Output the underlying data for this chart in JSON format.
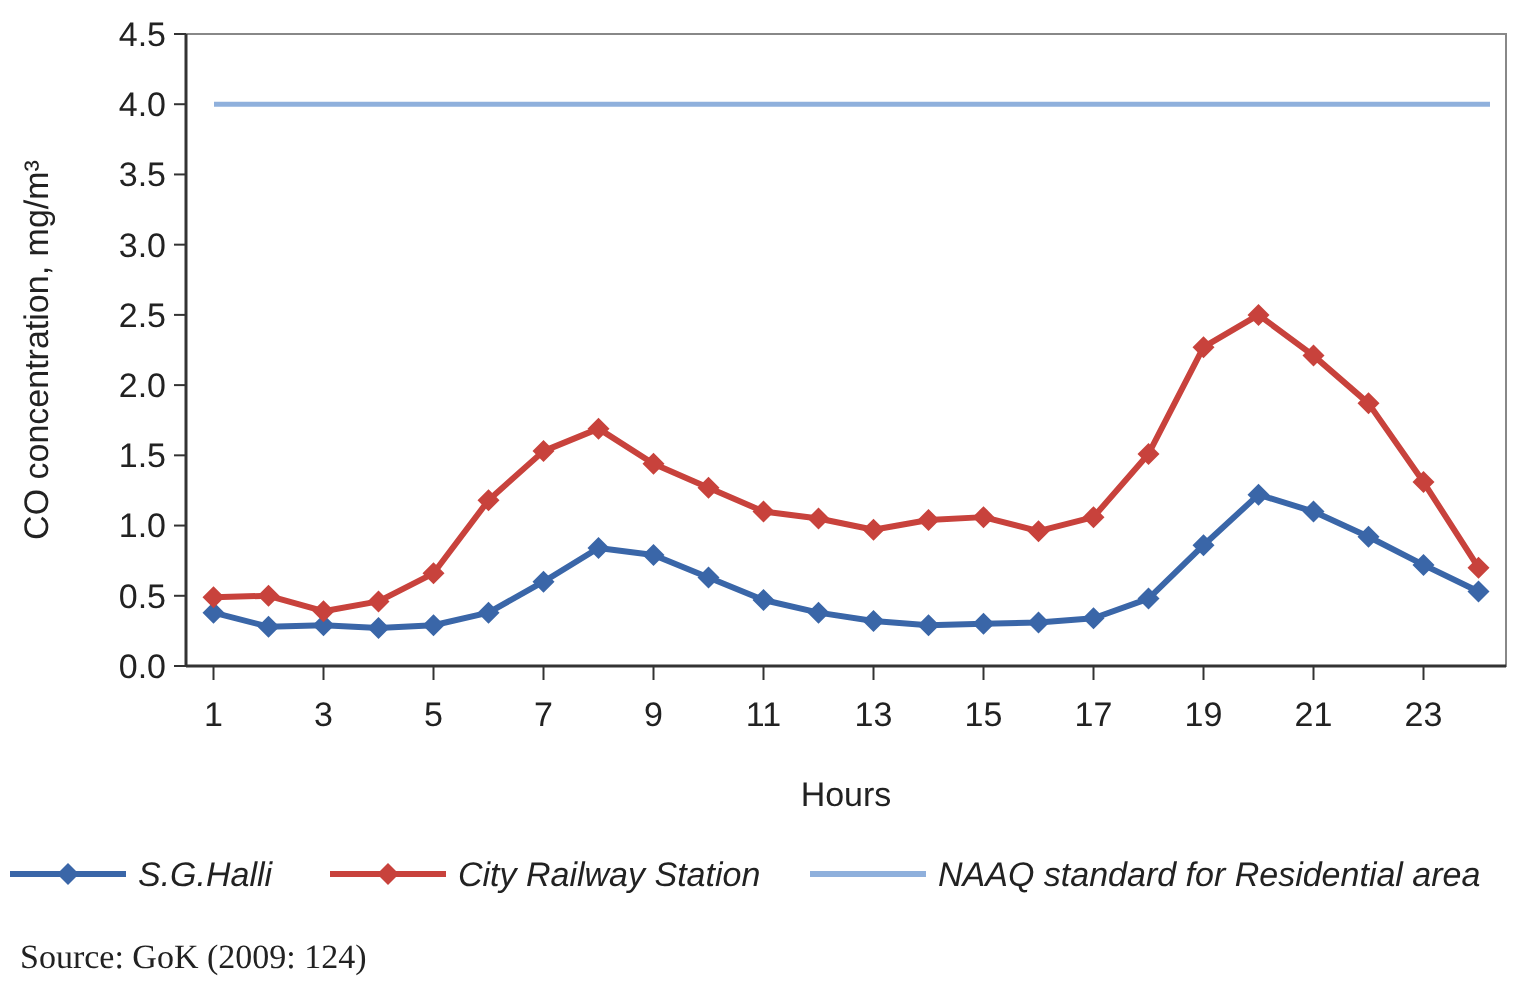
{
  "chart_data": {
    "type": "line",
    "xlabel": "Hours",
    "ylabel": "CO concentration, mg/m³",
    "x": [
      1,
      2,
      3,
      4,
      5,
      6,
      7,
      8,
      9,
      10,
      11,
      12,
      13,
      14,
      15,
      16,
      17,
      18,
      19,
      20,
      21,
      22,
      23,
      24
    ],
    "series": [
      {
        "name": "S.G.Halli",
        "color": "#3a66a8",
        "values": [
          0.38,
          0.28,
          0.29,
          0.27,
          0.29,
          0.38,
          0.6,
          0.84,
          0.79,
          0.63,
          0.47,
          0.38,
          0.32,
          0.29,
          0.3,
          0.31,
          0.34,
          0.48,
          0.86,
          1.22,
          1.1,
          0.92,
          0.72,
          0.53
        ]
      },
      {
        "name": "City Railway Station",
        "color": "#c8423c",
        "values": [
          0.49,
          0.5,
          0.39,
          0.46,
          0.66,
          1.18,
          1.53,
          1.69,
          1.44,
          1.27,
          1.1,
          1.05,
          0.97,
          1.04,
          1.06,
          0.96,
          1.06,
          1.51,
          2.27,
          2.5,
          2.21,
          1.87,
          1.31,
          0.7
        ]
      }
    ],
    "ref_lines": [
      {
        "axis": "y",
        "value": 4,
        "label": "NAAQ standard for Residential area",
        "color": "#8fb0dc"
      }
    ],
    "xlim": [
      0.5,
      24.5
    ],
    "xticks": [
      1,
      3,
      5,
      7,
      9,
      11,
      13,
      15,
      17,
      19,
      21,
      23
    ],
    "ylim": [
      0,
      4.5
    ],
    "yticks": [
      {
        "value": 0,
        "label": "0.0"
      },
      {
        "value": 0.5,
        "label": "0.5"
      },
      {
        "value": 1,
        "label": "1.0"
      },
      {
        "value": 1.5,
        "label": "1.5"
      },
      {
        "value": 2,
        "label": "2.0"
      },
      {
        "value": 2.5,
        "label": "2.5"
      },
      {
        "value": 3,
        "label": "3.0"
      },
      {
        "value": 3.5,
        "label": "3.5"
      },
      {
        "value": 4,
        "label": "4.0"
      },
      {
        "value": 4.5,
        "label": "4.5"
      }
    ],
    "marker": "diamond",
    "line_style": "solid",
    "legend": "bottom",
    "grid": false,
    "annotations": [
      "Source: GoK (2009: 124)"
    ]
  }
}
